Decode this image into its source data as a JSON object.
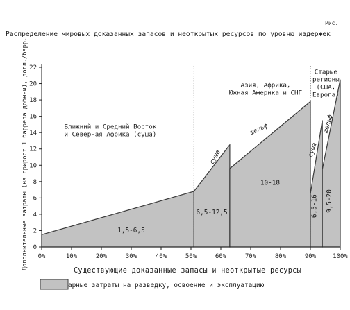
{
  "figure_label": "Рис.",
  "chart_data": {
    "type": "area",
    "title": "Распределение мировых доказанных запасов и неоткрытых ресурсов по уровню издержек",
    "xlabel": "Существующие доказанные запасы и неоткрытые ресурсы",
    "ylabel": "Дополнительные затраты (на прирост 1 баррела добычи), долл./барр.",
    "x_tick_labels": [
      "0%",
      "10%",
      "20%",
      "30%",
      "40%",
      "50%",
      "60%",
      "70%",
      "80%",
      "90%",
      "100%"
    ],
    "y_tick_labels": [
      "0",
      "2",
      "4",
      "6",
      "8",
      "10",
      "12",
      "14",
      "16",
      "18",
      "20",
      "22"
    ],
    "xlim": [
      0,
      100
    ],
    "ylim": [
      0,
      22
    ],
    "grid": false,
    "legend_position": "bottom-left",
    "fill_color": "#c2c2c2",
    "outline_color": "#3a3a3a",
    "series": [
      {
        "name": "арные затраты на разведку, освоение и эксплуатацию",
        "segments": [
          {
            "label": "1,5-6,5",
            "band": "",
            "points": [
              [
                0,
                1.5
              ],
              [
                51,
                6.8
              ],
              [
                51,
                0
              ],
              [
                0,
                0
              ]
            ]
          },
          {
            "label": "6,5-12,5",
            "band": "суша",
            "points": [
              [
                51,
                6.8
              ],
              [
                63,
                12.5
              ],
              [
                63,
                0
              ],
              [
                51,
                0
              ]
            ]
          },
          {
            "label": "10-18",
            "band": "шельф",
            "points": [
              [
                63,
                9.6
              ],
              [
                90,
                17.8
              ],
              [
                90,
                0
              ],
              [
                63,
                0
              ]
            ]
          },
          {
            "label": "6,5-16",
            "band": "суша",
            "points": [
              [
                90,
                6.5
              ],
              [
                94,
                15.5
              ],
              [
                94,
                0
              ],
              [
                90,
                0
              ]
            ]
          },
          {
            "label": "9,5-20",
            "band": "шельф",
            "points": [
              [
                94,
                9.5
              ],
              [
                100,
                20.5
              ],
              [
                100,
                0
              ],
              [
                94,
                0
              ]
            ]
          }
        ]
      }
    ],
    "dividers_x": [
      51,
      90
    ],
    "regions": [
      {
        "lines": [
          "Ближний и Средний Восток",
          "и Северная Африка (суша)"
        ]
      },
      {
        "lines": [
          "Азия, Африка,",
          "Южная Америка и СНГ"
        ]
      },
      {
        "lines": [
          "Старые",
          "регионы",
          "(США,",
          "Европа)"
        ]
      }
    ]
  }
}
